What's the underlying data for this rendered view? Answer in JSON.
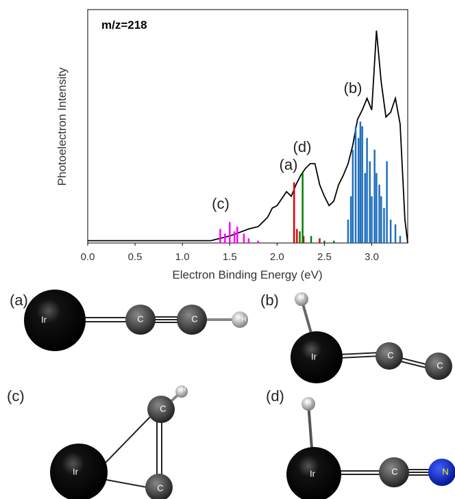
{
  "chart_data": {
    "type": "line",
    "annotation": "m/z=218",
    "x_label": "Electron Binding Energy (eV)",
    "y_label": "Photoelectron Intensity",
    "xlim": [
      0,
      3.38
    ],
    "ylim": [
      0,
      1
    ],
    "xticks": [
      {
        "value": 0,
        "label": "0.0"
      },
      0.5,
      {
        "value": 1,
        "label": "1.0"
      },
      1.5,
      {
        "value": 2,
        "label": "2.0"
      },
      2.5,
      {
        "value": 3,
        "label": "3.0"
      }
    ],
    "series": [
      {
        "type": "line",
        "color": "#000000",
        "x": [
          0,
          0.3,
          0.6,
          0.9,
          1.2,
          1.3,
          1.5,
          1.6,
          1.7,
          1.8,
          1.9,
          1.95,
          2.0,
          2.05,
          2.1,
          2.15,
          2.2,
          2.25,
          2.3,
          2.35,
          2.4,
          2.45,
          2.5,
          2.55,
          2.6,
          2.65,
          2.7,
          2.75,
          2.8,
          2.85,
          2.9,
          2.95,
          3.0,
          3.05,
          3.1,
          3.15,
          3.2,
          3.25,
          3.3,
          3.35,
          3.38
        ],
        "values": [
          0.01,
          0.01,
          0.01,
          0.01,
          0.01,
          0.01,
          0.03,
          0.045,
          0.06,
          0.07,
          0.11,
          0.15,
          0.16,
          0.19,
          0.22,
          0.2,
          0.25,
          0.29,
          0.32,
          0.34,
          0.34,
          0.25,
          0.2,
          0.16,
          0.18,
          0.25,
          0.29,
          0.34,
          0.42,
          0.53,
          0.57,
          0.62,
          0.57,
          0.91,
          0.69,
          0.54,
          0.56,
          0.62,
          0.51,
          0.1,
          0.0
        ]
      },
      {
        "type": "stick",
        "name": "(c)",
        "color": "#ff00ff",
        "x": [
          1.4,
          1.45,
          1.5,
          1.55,
          1.58,
          1.65,
          1.7,
          1.8
        ],
        "values": [
          0.06,
          0.04,
          0.09,
          0.05,
          0.07,
          0.04,
          0.02,
          0.01
        ]
      },
      {
        "type": "stick",
        "name": "(a)",
        "color": "#e00000",
        "x": [
          2.18,
          2.21,
          2.28,
          2.45
        ],
        "values": [
          0.26,
          0.06,
          0.03,
          0.02
        ]
      },
      {
        "type": "stick",
        "name": "(d)",
        "color": "#008000",
        "x": [
          2.24,
          2.27,
          2.36,
          2.5,
          2.6
        ],
        "values": [
          0.05,
          0.3,
          0.03,
          0.01,
          0.01
        ]
      },
      {
        "type": "stick",
        "name": "(b)",
        "color": "#1f6fbf",
        "x": [
          2.75,
          2.78,
          2.8,
          2.83,
          2.86,
          2.88,
          2.9,
          2.93,
          2.95,
          2.98,
          3.0,
          3.03,
          3.05,
          3.08,
          3.1,
          3.13,
          3.16,
          3.2,
          3.25,
          3.3
        ],
        "values": [
          0.1,
          0.2,
          0.4,
          0.5,
          0.45,
          0.52,
          0.5,
          0.3,
          0.45,
          0.35,
          0.2,
          0.4,
          0.3,
          0.25,
          0.2,
          0.15,
          0.35,
          0.1,
          0.08,
          0.03
        ]
      }
    ]
  },
  "molecules": [
    {
      "label": "(a)",
      "atoms": [
        "Ir",
        "C",
        "C",
        "H"
      ]
    },
    {
      "label": "(b)",
      "atoms": [
        "H",
        "Ir",
        "C",
        "C"
      ]
    },
    {
      "label": "(c)",
      "atoms": [
        "H",
        "C",
        "Ir",
        "C"
      ]
    },
    {
      "label": "(d)",
      "atoms": [
        "H",
        "Ir",
        "C",
        "N"
      ]
    }
  ]
}
